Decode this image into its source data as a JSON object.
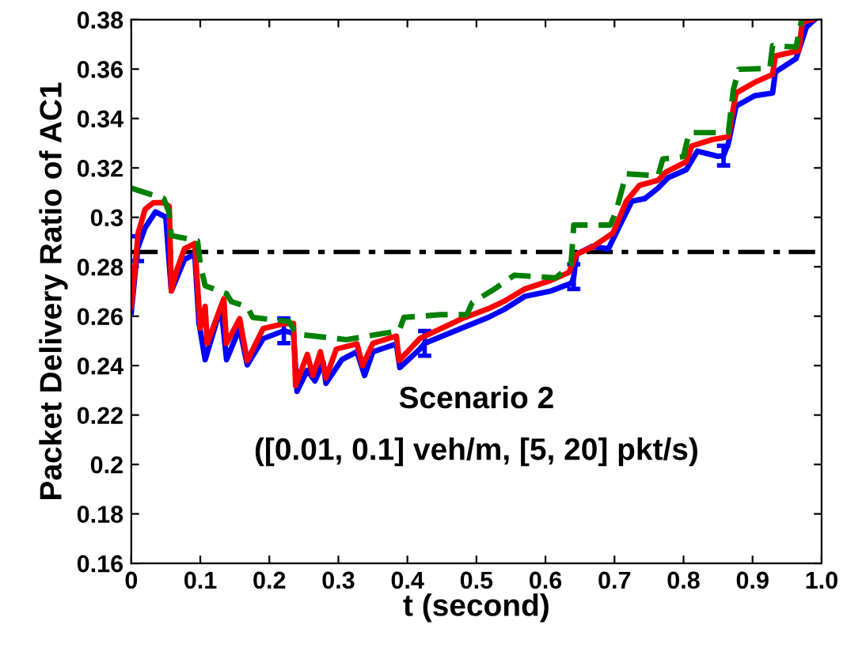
{
  "chart_data": {
    "type": "line",
    "xlabel": "t (second)",
    "ylabel": "Packet Delivery Ratio of AC1",
    "xlim": [
      0,
      1
    ],
    "ylim": [
      0.16,
      0.38
    ],
    "xticks": [
      0,
      0.1,
      0.2,
      0.3,
      0.4,
      0.5,
      0.6,
      0.7,
      0.8,
      0.9,
      {
        "value": 1,
        "label": "1.0"
      }
    ],
    "yticks": [
      0.16,
      0.18,
      0.2,
      0.22,
      0.24,
      0.26,
      0.28,
      0.3,
      0.32,
      0.34,
      0.36,
      0.38
    ],
    "grid": false,
    "legend": false,
    "annotations": [
      "Scenario 2",
      "([0.01, 0.1] veh/m, [5, 20] pkt/s)"
    ],
    "ref_lines": [
      {
        "axis": "y",
        "value": 0.286,
        "color": "#000000",
        "line_style": "dashdot"
      }
    ],
    "series": [
      {
        "color": "#0000ff",
        "line_style": "solid",
        "x": [
          0,
          0.009,
          0.02,
          0.035,
          0.05,
          0.058,
          0.077,
          0.092,
          0.098,
          0.107,
          0.13,
          0.138,
          0.157,
          0.168,
          0.191,
          0.221,
          0.235,
          0.24,
          0.255,
          0.266,
          0.278,
          0.282,
          0.305,
          0.327,
          0.338,
          0.35,
          0.384,
          0.389,
          0.418,
          0.425,
          0.479,
          0.517,
          0.54,
          0.57,
          0.608,
          0.638,
          0.641,
          0.645,
          0.668,
          0.691,
          0.706,
          0.725,
          0.744,
          0.763,
          0.778,
          0.804,
          0.82,
          0.85,
          0.858,
          0.865,
          0.876,
          0.903,
          0.929,
          0.933,
          0.963,
          0.978,
          0.99
        ],
        "values": [
          0.2616,
          0.2873,
          0.2958,
          0.3022,
          0.3001,
          0.2702,
          0.283,
          0.2851,
          0.2573,
          0.2424,
          0.2638,
          0.2424,
          0.2552,
          0.2403,
          0.2509,
          0.2541,
          0.2531,
          0.2296,
          0.2381,
          0.2338,
          0.2413,
          0.2328,
          0.2424,
          0.2456,
          0.236,
          0.2456,
          0.2488,
          0.2392,
          0.2467,
          0.249,
          0.2552,
          0.2595,
          0.2627,
          0.268,
          0.2702,
          0.2734,
          0.276,
          0.2851,
          0.2883,
          0.2872,
          0.2958,
          0.3065,
          0.3076,
          0.3118,
          0.3161,
          0.3193,
          0.3268,
          0.3247,
          0.325,
          0.33,
          0.345,
          0.3492,
          0.3503,
          0.3588,
          0.3642,
          0.377,
          0.38
        ],
        "errors": [
          null,
          0.005,
          null,
          null,
          null,
          null,
          null,
          null,
          null,
          null,
          null,
          null,
          null,
          null,
          null,
          0.005,
          null,
          null,
          null,
          null,
          null,
          null,
          null,
          null,
          null,
          null,
          null,
          null,
          null,
          0.005,
          null,
          null,
          null,
          null,
          null,
          null,
          0.005,
          null,
          null,
          null,
          null,
          null,
          null,
          null,
          null,
          null,
          null,
          null,
          0.004,
          null,
          null,
          null,
          null,
          null,
          null,
          null,
          null
        ]
      },
      {
        "color": "#ff0000",
        "line_style": "solid",
        "x": [
          0,
          0.01,
          0.02,
          0.032,
          0.047,
          0.055,
          0.058,
          0.066,
          0.077,
          0.092,
          0.1,
          0.107,
          0.11,
          0.134,
          0.138,
          0.157,
          0.168,
          0.191,
          0.221,
          0.235,
          0.238,
          0.255,
          0.263,
          0.274,
          0.282,
          0.297,
          0.327,
          0.335,
          0.35,
          0.384,
          0.388,
          0.418,
          0.479,
          0.517,
          0.54,
          0.57,
          0.608,
          0.634,
          0.645,
          0.668,
          0.698,
          0.717,
          0.736,
          0.763,
          0.774,
          0.804,
          0.812,
          0.842,
          0.865,
          0.876,
          0.903,
          0.929,
          0.933,
          0.967,
          0.972,
          0.986
        ],
        "values": [
          0.2638,
          0.2937,
          0.3033,
          0.3059,
          0.3059,
          0.3044,
          0.2702,
          0.2787,
          0.2873,
          0.2894,
          0.2552,
          0.264,
          0.249,
          0.267,
          0.249,
          0.259,
          0.242,
          0.255,
          0.257,
          0.257,
          0.232,
          0.2445,
          0.236,
          0.2456,
          0.235,
          0.2467,
          0.2488,
          0.24,
          0.249,
          0.252,
          0.242,
          0.251,
          0.259,
          0.263,
          0.266,
          0.271,
          0.2745,
          0.2777,
          0.2851,
          0.288,
          0.2937,
          0.3065,
          0.3129,
          0.315,
          0.3182,
          0.3225,
          0.3289,
          0.3315,
          0.3326,
          0.3503,
          0.3546,
          0.3578,
          0.3653,
          0.3674,
          0.379,
          0.38
        ]
      },
      {
        "color": "#008000",
        "line_style": "dashed",
        "x": [
          0,
          0.047,
          0.0545,
          0.058,
          0.096,
          0.1,
          0.107,
          0.138,
          0.145,
          0.168,
          0.176,
          0.229,
          0.236,
          0.244,
          0.312,
          0.388,
          0.395,
          0.448,
          0.486,
          0.494,
          0.524,
          0.555,
          0.615,
          0.637,
          0.641,
          0.694,
          0.702,
          0.717,
          0.763,
          0.77,
          0.8,
          0.808,
          0.865,
          0.872,
          0.88,
          0.925,
          0.929,
          0.963,
          0.971
        ],
        "values": [
          0.3118,
          0.3076,
          0.3022,
          0.2926,
          0.2905,
          0.2809,
          0.2723,
          0.2691,
          0.2659,
          0.2638,
          0.2595,
          0.2578,
          0.2541,
          0.2526,
          0.2505,
          0.2541,
          0.2595,
          0.2606,
          0.2606,
          0.2655,
          0.2706,
          0.2766,
          0.2755,
          0.2809,
          0.2969,
          0.2969,
          0.3022,
          0.3176,
          0.3168,
          0.3236,
          0.3246,
          0.3343,
          0.3343,
          0.3514,
          0.3599,
          0.3603,
          0.3695,
          0.3689,
          0.38
        ]
      }
    ]
  }
}
